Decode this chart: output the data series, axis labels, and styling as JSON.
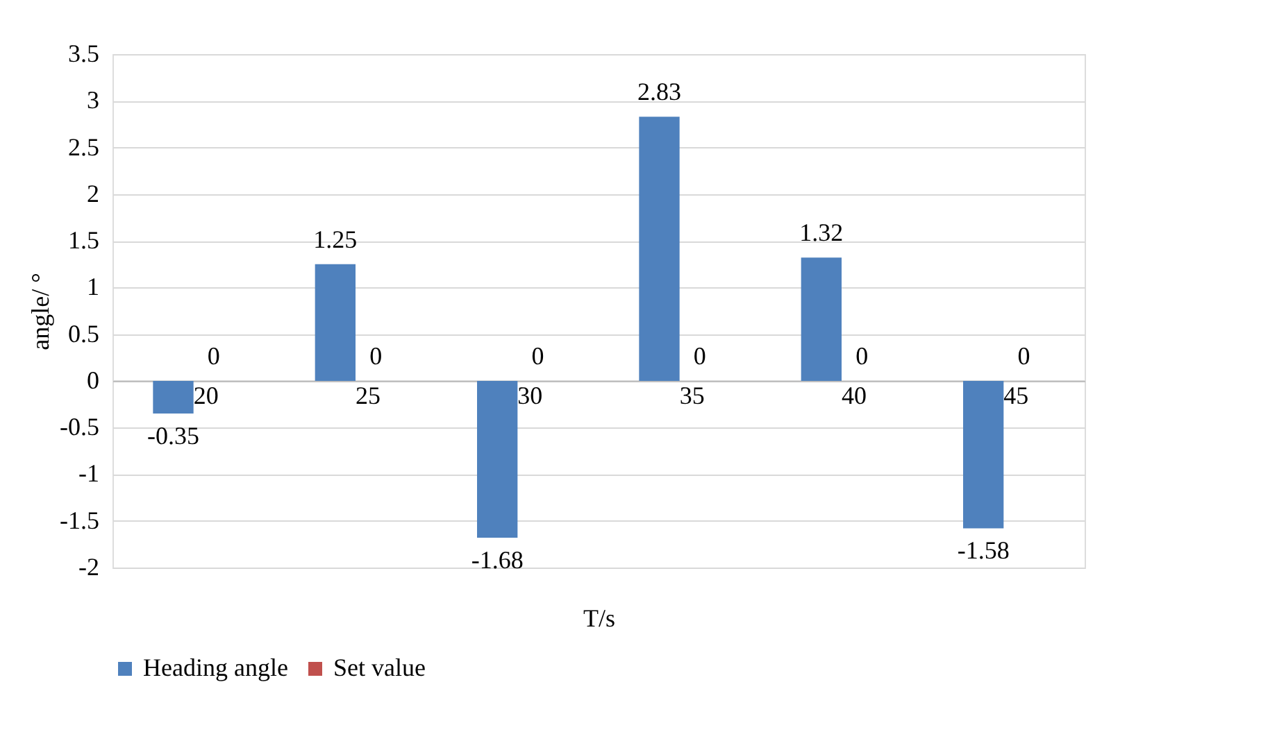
{
  "chart_data": {
    "type": "bar",
    "xlabel": "T/s",
    "ylabel": "angle/ °",
    "categories": [
      "20",
      "25",
      "30",
      "35",
      "40",
      "45"
    ],
    "series": [
      {
        "name": "Heading angle",
        "color": "#4f81bd",
        "values": [
          -0.35,
          1.25,
          -1.68,
          2.83,
          1.32,
          -1.58
        ]
      },
      {
        "name": "Set value",
        "color": "#c0504d",
        "values": [
          0,
          0,
          0,
          0,
          0,
          0
        ]
      }
    ],
    "ylim": [
      -2,
      3.5
    ],
    "yticks": [
      -2,
      -1.5,
      -1,
      -0.5,
      0,
      0.5,
      1,
      1.5,
      2,
      2.5,
      3,
      3.5
    ],
    "grid": "y",
    "legend": "bottom",
    "data_labels": true
  }
}
